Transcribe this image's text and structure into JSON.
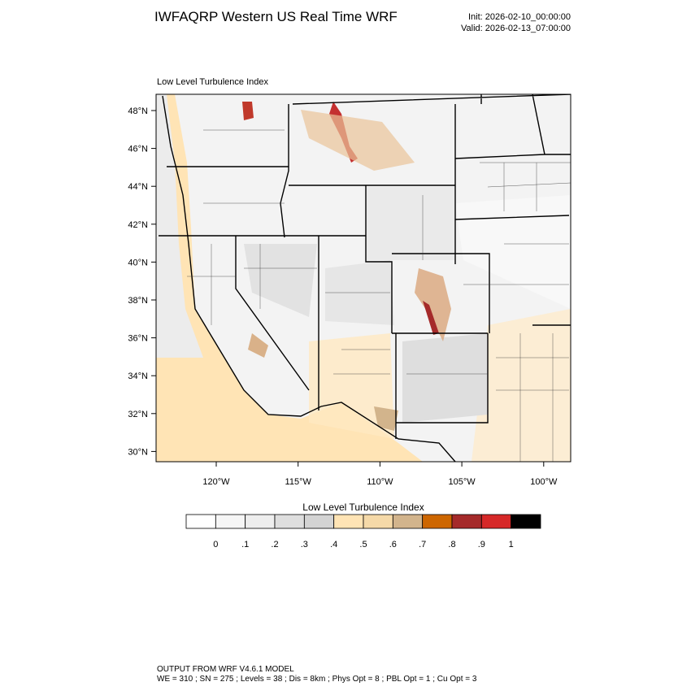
{
  "header": {
    "title": "IWFAQRP Western US Real Time WRF",
    "init": "Init: 2026-02-10_00:00:00",
    "valid": "Valid: 2026-02-13_07:00:00"
  },
  "map": {
    "label": "Low Level Turbulence Index",
    "lat_labels": [
      "48°N",
      "46°N",
      "44°N",
      "42°N",
      "40°N",
      "38°N",
      "36°N",
      "34°N",
      "32°N",
      "30°N"
    ],
    "lon_labels": [
      "120°W",
      "115°W",
      "110°W",
      "105°W",
      "100°W"
    ]
  },
  "colorbar": {
    "title": "Low Level Turbulence Index",
    "colors": [
      "#ffffff",
      "#f6f6f6",
      "#eeeeee",
      "#dedede",
      "#d3d3d3",
      "#ffe4b5",
      "#f5d9a8",
      "#d2b48c",
      "#cd6600",
      "#a52a2a",
      "#d62828",
      "#000000"
    ],
    "labels": [
      "0",
      ".1",
      ".2",
      ".3",
      ".4",
      ".5",
      ".6",
      ".7",
      ".8",
      ".9",
      "1"
    ]
  },
  "footer": {
    "line1": "OUTPUT FROM WRF V4.6.1 MODEL",
    "line2": "WE = 310 ; SN = 275 ; Levels = 38 ; Dis = 8km ; Phys Opt = 8 ; PBL Opt = 1 ; Cu Opt = 3"
  }
}
